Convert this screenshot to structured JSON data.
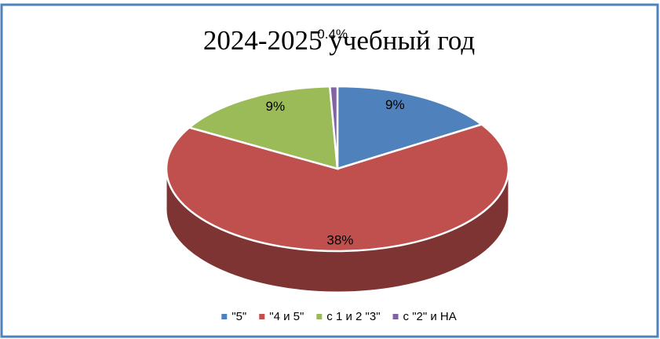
{
  "chart_data": {
    "type": "pie3d",
    "title": "2024-2025 учебный год",
    "categories": [
      "\"5\"",
      "\"4 и 5\"",
      "с 1 и 2 \"3\"",
      "с \"2\" и НА"
    ],
    "values": [
      9,
      38,
      9,
      0.4
    ],
    "value_labels": [
      "9%",
      "38%",
      "9%",
      "0.4%"
    ],
    "colors": [
      "#4f81bd",
      "#c0504d",
      "#9bbb59",
      "#8064a2"
    ],
    "legend": "bottom"
  }
}
